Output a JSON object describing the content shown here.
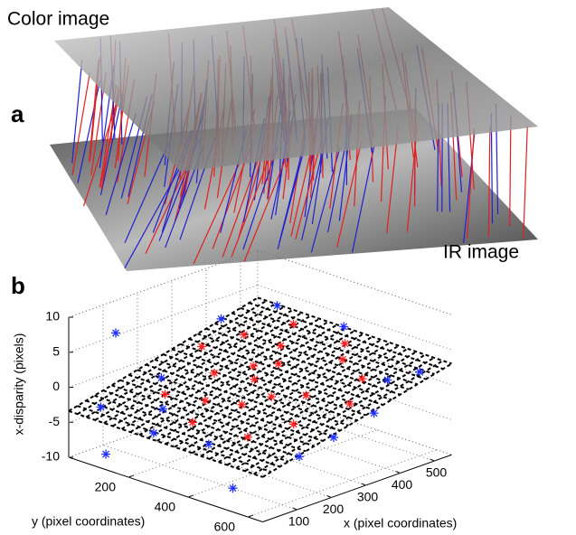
{
  "panel_a": {
    "label": "a",
    "top_label": "Color image",
    "bottom_label": "IR image"
  },
  "chart_data": {
    "type": "scatter3d",
    "label": "b",
    "zlabel": "x-disparity (pixels)",
    "ylabel": "y (pixel coordinates)",
    "xlabel": "x (pixel coordinates)",
    "xlim": [
      0,
      550
    ],
    "ylim": [
      0,
      650
    ],
    "zlim": [
      -10,
      10
    ],
    "xticks": [
      100,
      200,
      300,
      400,
      500
    ],
    "yticks": [
      200,
      400,
      600
    ],
    "zticks": [
      -10,
      -5,
      0,
      5,
      10
    ],
    "grid": true,
    "series": [
      {
        "color": "#ff2020",
        "x": [
          300,
          250,
          350,
          200,
          400,
          150,
          450,
          300,
          100,
          380,
          220,
          480,
          320,
          260,
          420,
          180,
          340,
          500,
          280,
          130
        ],
        "y": [
          100,
          200,
          300,
          350,
          250,
          150,
          400,
          450,
          300,
          150,
          500,
          200,
          250,
          380,
          500,
          250,
          550,
          350,
          300,
          450
        ],
        "z": [
          2,
          0.5,
          1.5,
          -1,
          2.5,
          -1.5,
          1.8,
          0,
          -2.5,
          3,
          -2,
          3.5,
          1,
          -0.5,
          1,
          -1.5,
          -0.5,
          2.5,
          0.5,
          -3
        ]
      },
      {
        "color": "#2030ff",
        "x": [
          50,
          60,
          150,
          500,
          520,
          100,
          400,
          250,
          30,
          450,
          200,
          350,
          540,
          50,
          30,
          0
        ],
        "y": [
          50,
          400,
          600,
          600,
          100,
          200,
          50,
          600,
          250,
          550,
          80,
          620,
          300,
          100,
          90,
          550
        ],
        "z": [
          -3,
          -3.5,
          -4,
          2,
          4,
          -2,
          3.5,
          -3,
          -3.5,
          1,
          -1,
          -1,
          3.5,
          8.3,
          -8.8,
          -6.6
        ]
      }
    ]
  }
}
